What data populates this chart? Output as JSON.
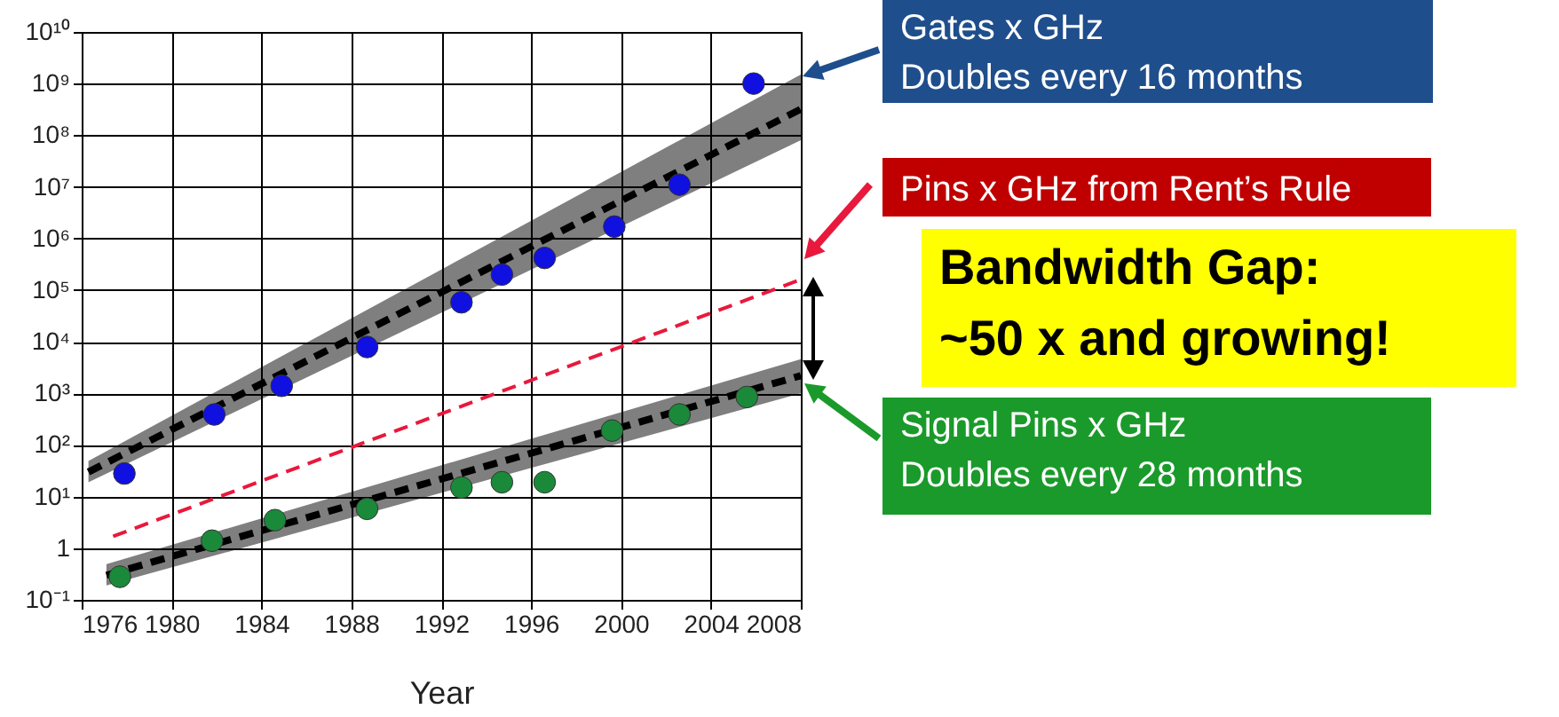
{
  "chart_data": {
    "type": "scatter",
    "xlabel": "Year",
    "xlim": [
      1976,
      2008
    ],
    "xticks": [
      1976,
      1980,
      1984,
      1988,
      1992,
      1996,
      2000,
      2004,
      2008
    ],
    "ylim": [
      0.1,
      10000000000
    ],
    "log": "y",
    "grid": true,
    "marker": "circle",
    "yticks": [
      {
        "value": 0.1,
        "label": "10⁻¹"
      },
      1,
      {
        "value": 10,
        "label": "10¹"
      },
      {
        "value": 100,
        "label": "10²"
      },
      {
        "value": 1000,
        "label": "10³"
      },
      {
        "value": 10000,
        "label": "10⁴"
      },
      {
        "value": 100000,
        "label": "10⁵"
      },
      {
        "value": 1000000,
        "label": "10⁶"
      },
      {
        "value": 10000000,
        "label": "10⁷"
      },
      {
        "value": 100000000,
        "label": "10⁸"
      },
      {
        "value": 1000000000,
        "label": "10⁹"
      },
      {
        "value": 10000000000,
        "label": "10¹⁰"
      }
    ],
    "series": [
      {
        "type": "line",
        "marker": "none",
        "color": "#000000",
        "line_style": "dashed",
        "x": [
          1976.3,
          2008
        ],
        "values": [
          30,
          320000000
        ],
        "lower": [
          19,
          80000000
        ],
        "upper": [
          49,
          1500000000
        ]
      },
      {
        "type": "line",
        "marker": "none",
        "color": "#000000",
        "line_style": "dashed",
        "x": [
          1977.1,
          2008
        ],
        "values": [
          0.3,
          2200
        ],
        "lower": [
          0.19,
          1000
        ],
        "upper": [
          0.49,
          4600
        ]
      },
      {
        "type": "line",
        "marker": "none",
        "color": "#e8193c",
        "line_style": "dashed",
        "x": [
          1977.4,
          2008
        ],
        "values": [
          1.7,
          160000
        ]
      },
      {
        "color": "#1010e0",
        "x": [
          1977.9,
          1981.9,
          1984.9,
          1988.7,
          1992.9,
          1994.7,
          1996.6,
          1999.7,
          2002.6,
          2005.9
        ],
        "values": [
          28,
          390,
          1400,
          7900,
          58000,
          200000,
          420000,
          1700000,
          11000000,
          1000000000
        ]
      },
      {
        "color": "#1a8a3a",
        "x": [
          1977.7,
          1981.8,
          1984.6,
          1988.7,
          1992.9,
          1994.7,
          1996.6,
          1999.6,
          2002.6,
          2005.6
        ],
        "values": [
          0.28,
          1.4,
          3.5,
          5.8,
          15,
          19,
          19,
          190,
          390,
          850
        ]
      }
    ],
    "annotations": [
      "Gates x GHz\nDoubles every 16 months",
      "Pins x GHz from Rent’s Rule",
      "Bandwidth Gap:\n~50 x and growing!",
      "Signal Pins x GHz\nDoubles every 28 months"
    ]
  }
}
